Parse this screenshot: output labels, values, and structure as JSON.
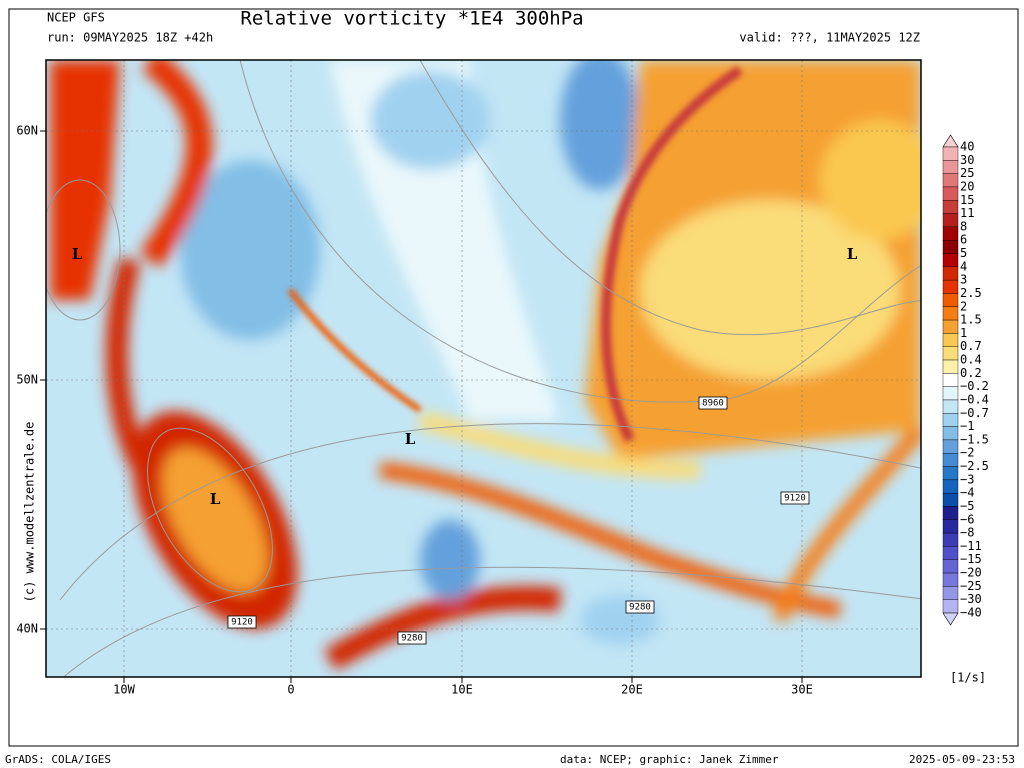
{
  "header": {
    "model": "NCEP GFS",
    "run": "run: 09MAY2025 18Z +42h",
    "title": "Relative vorticity *1E4 300hPa",
    "valid": "valid: ???, 11MAY2025 12Z"
  },
  "map": {
    "lat_labels": [
      "60N",
      "50N",
      "40N"
    ],
    "lon_labels": [
      "10W",
      "0",
      "10E",
      "20E",
      "30E"
    ],
    "annotations": [
      "L",
      "L",
      "L",
      "L",
      "8960",
      "9120",
      "9120",
      "9280",
      "9280"
    ],
    "watermark": "(c) www.modellzentrale.de"
  },
  "colorbar": {
    "labels": [
      "40",
      "30",
      "25",
      "20",
      "15",
      "11",
      "8",
      "6",
      "5",
      "4",
      "3",
      "2.5",
      "2",
      "1.5",
      "1",
      "0.7",
      "0.4",
      "0.2",
      "−0.2",
      "−0.4",
      "−0.7",
      "−1",
      "−1.5",
      "−2",
      "−2.5",
      "−3",
      "−4",
      "−5",
      "−6",
      "−8",
      "−11",
      "−15",
      "−20",
      "−25",
      "−30",
      "−40"
    ],
    "colors": [
      "#f6d2d2",
      "#f0b4b4",
      "#e89696",
      "#e07878",
      "#d85a5a",
      "#c83c3c",
      "#b41e1e",
      "#a00000",
      "#8c0000",
      "#b40000",
      "#d22800",
      "#e63200",
      "#f05a00",
      "#f57d14",
      "#f5a032",
      "#fac850",
      "#fadc78",
      "#fff0aa",
      "#ffffff",
      "#e1f5fa",
      "#c3e6f5",
      "#a0d2f0",
      "#82bee6",
      "#64a0dc",
      "#468cd2",
      "#2878c8",
      "#1464be",
      "#0a50aa",
      "#1e1e8c",
      "#2828a0",
      "#3c3cb4",
      "#5050c8",
      "#6464d2",
      "#7878dc",
      "#9696e6",
      "#b4b4f0",
      "#d2d2fa"
    ],
    "unit": "[1/s]"
  },
  "footer": {
    "software": "GrADS: COLA/IGES",
    "credit": "data: NCEP; graphic: Janek Zimmer",
    "timestamp": "2025-05-09-23:53"
  }
}
